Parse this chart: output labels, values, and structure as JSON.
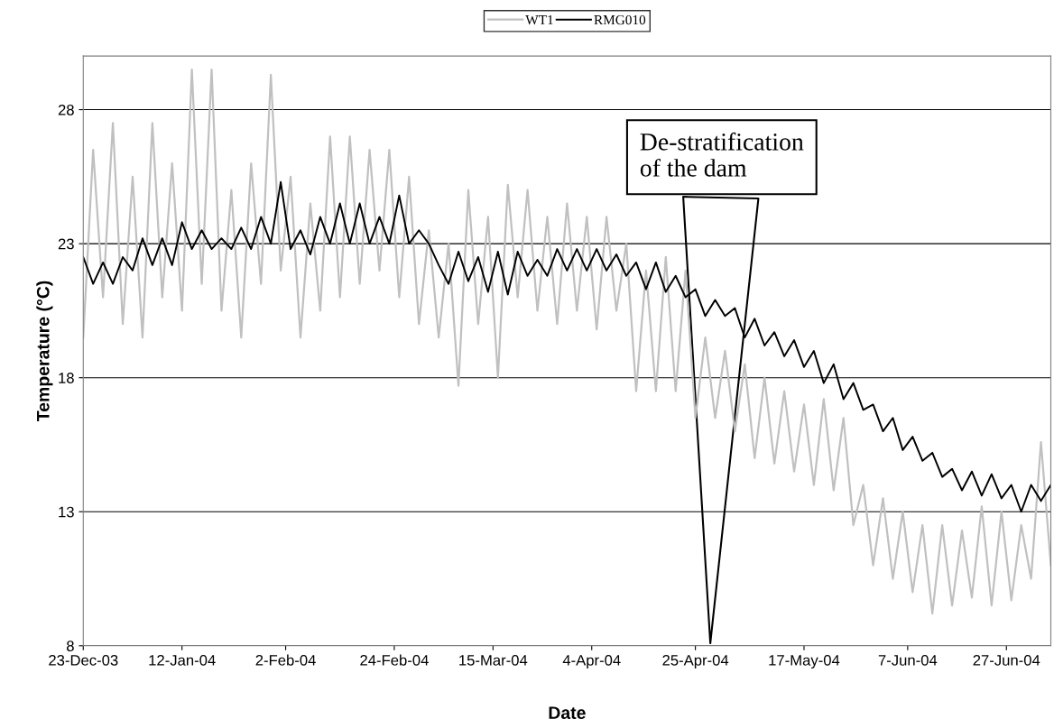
{
  "chart_data": {
    "type": "line",
    "xlabel": "Date",
    "ylabel": "Temperature (°C)",
    "x": [
      "2003-12-23",
      "2003-12-25",
      "2003-12-27",
      "2003-12-29",
      "2003-12-31",
      "2004-01-02",
      "2004-01-04",
      "2004-01-06",
      "2004-01-08",
      "2004-01-10",
      "2004-01-12",
      "2004-01-14",
      "2004-01-16",
      "2004-01-18",
      "2004-01-20",
      "2004-01-22",
      "2004-01-24",
      "2004-01-26",
      "2004-01-28",
      "2004-01-30",
      "2004-02-01",
      "2004-02-03",
      "2004-02-05",
      "2004-02-07",
      "2004-02-09",
      "2004-02-11",
      "2004-02-13",
      "2004-02-15",
      "2004-02-17",
      "2004-02-19",
      "2004-02-21",
      "2004-02-23",
      "2004-02-25",
      "2004-02-27",
      "2004-02-29",
      "2004-03-02",
      "2004-03-04",
      "2004-03-06",
      "2004-03-08",
      "2004-03-10",
      "2004-03-12",
      "2004-03-14",
      "2004-03-16",
      "2004-03-18",
      "2004-03-20",
      "2004-03-22",
      "2004-03-24",
      "2004-03-26",
      "2004-03-28",
      "2004-03-30",
      "2004-04-01",
      "2004-04-03",
      "2004-04-05",
      "2004-04-07",
      "2004-04-09",
      "2004-04-11",
      "2004-04-13",
      "2004-04-15",
      "2004-04-17",
      "2004-04-19",
      "2004-04-21",
      "2004-04-23",
      "2004-04-25",
      "2004-04-27",
      "2004-04-29",
      "2004-05-01",
      "2004-05-03",
      "2004-05-05",
      "2004-05-07",
      "2004-05-09",
      "2004-05-11",
      "2004-05-13",
      "2004-05-15",
      "2004-05-17",
      "2004-05-19",
      "2004-05-21",
      "2004-05-23",
      "2004-05-25",
      "2004-05-27",
      "2004-05-29",
      "2004-05-31",
      "2004-06-02",
      "2004-06-04",
      "2004-06-06",
      "2004-06-08",
      "2004-06-10",
      "2004-06-12",
      "2004-06-14",
      "2004-06-16",
      "2004-06-18",
      "2004-06-20",
      "2004-06-22",
      "2004-06-24",
      "2004-06-26",
      "2004-06-28",
      "2004-06-30",
      "2004-07-02",
      "2004-07-04",
      "2004-07-06"
    ],
    "series": [
      {
        "name": "WT1",
        "color": "#c0c0c0",
        "values": [
          19.5,
          26.5,
          21,
          27.5,
          20,
          25.5,
          19.5,
          27.5,
          21,
          26,
          20.5,
          29.5,
          21.5,
          29.5,
          20.5,
          25,
          19.5,
          26,
          21.5,
          29.3,
          22,
          25.5,
          19.5,
          24.5,
          20.5,
          27,
          21,
          27,
          21.5,
          26.5,
          22,
          26.5,
          21,
          25.5,
          20,
          23.5,
          19.5,
          23,
          17.7,
          25,
          20,
          24,
          18,
          25.2,
          21,
          25,
          20.5,
          24,
          20,
          24.5,
          20.5,
          24,
          19.8,
          24,
          20.5,
          23,
          17.5,
          22,
          17.5,
          22.5,
          17.5,
          22,
          16.5,
          19.5,
          16.5,
          19,
          16,
          18.5,
          15,
          18,
          14.8,
          17.5,
          14.5,
          17,
          14,
          17.2,
          13.8,
          16.5,
          12.5,
          14,
          11,
          13.5,
          10.5,
          13,
          10,
          12.5,
          9.2,
          12.5,
          9.5,
          12.3,
          9.8,
          13.2,
          9.5,
          13,
          9.7,
          12.5,
          10.5,
          15.6,
          11
        ]
      },
      {
        "name": "RMG010",
        "color": "#000000",
        "values": [
          22.5,
          21.5,
          22.3,
          21.5,
          22.5,
          22,
          23.2,
          22.2,
          23.2,
          22.2,
          23.8,
          22.8,
          23.5,
          22.8,
          23.2,
          22.8,
          23.6,
          22.8,
          24,
          23,
          25.3,
          22.8,
          23.5,
          22.6,
          24,
          23,
          24.5,
          23,
          24.5,
          23,
          24,
          23,
          24.8,
          23,
          23.5,
          23,
          22.2,
          21.5,
          22.7,
          21.6,
          22.5,
          21.2,
          22.7,
          21.1,
          22.7,
          21.8,
          22.4,
          21.8,
          22.8,
          22,
          22.8,
          22,
          22.8,
          22,
          22.6,
          21.8,
          22.3,
          21.3,
          22.3,
          21.2,
          21.8,
          21,
          21.3,
          20.3,
          20.9,
          20.3,
          20.6,
          19.5,
          20.2,
          19.2,
          19.7,
          18.8,
          19.4,
          18.4,
          19,
          17.8,
          18.5,
          17.2,
          17.8,
          16.8,
          17,
          16,
          16.5,
          15.3,
          15.8,
          14.9,
          15.2,
          14.3,
          14.6,
          13.8,
          14.5,
          13.6,
          14.4,
          13.5,
          14,
          13,
          14,
          13.4,
          14
        ]
      }
    ],
    "xlim": [
      "2003-12-23",
      "2004-07-06"
    ],
    "xticks": [
      {
        "value": "2003-12-23",
        "label": "23-Dec-03"
      },
      {
        "value": "2004-01-12",
        "label": "12-Jan-04"
      },
      {
        "value": "2004-02-02",
        "label": "2-Feb-04"
      },
      {
        "value": "2004-02-24",
        "label": "24-Feb-04"
      },
      {
        "value": "2004-03-15",
        "label": "15-Mar-04"
      },
      {
        "value": "2004-04-04",
        "label": "4-Apr-04"
      },
      {
        "value": "2004-04-25",
        "label": "25-Apr-04"
      },
      {
        "value": "2004-05-17",
        "label": "17-May-04"
      },
      {
        "value": "2004-06-07",
        "label": "7-Jun-04"
      },
      {
        "value": "2004-06-27",
        "label": "27-Jun-04"
      }
    ],
    "ylim": [
      8,
      30
    ],
    "yticks": [
      8,
      13,
      18,
      23,
      28
    ],
    "grid": "y",
    "legend": "top",
    "marker": "none",
    "line_style": "solid",
    "annotations": [
      "De-stratification\nof the dam"
    ]
  }
}
